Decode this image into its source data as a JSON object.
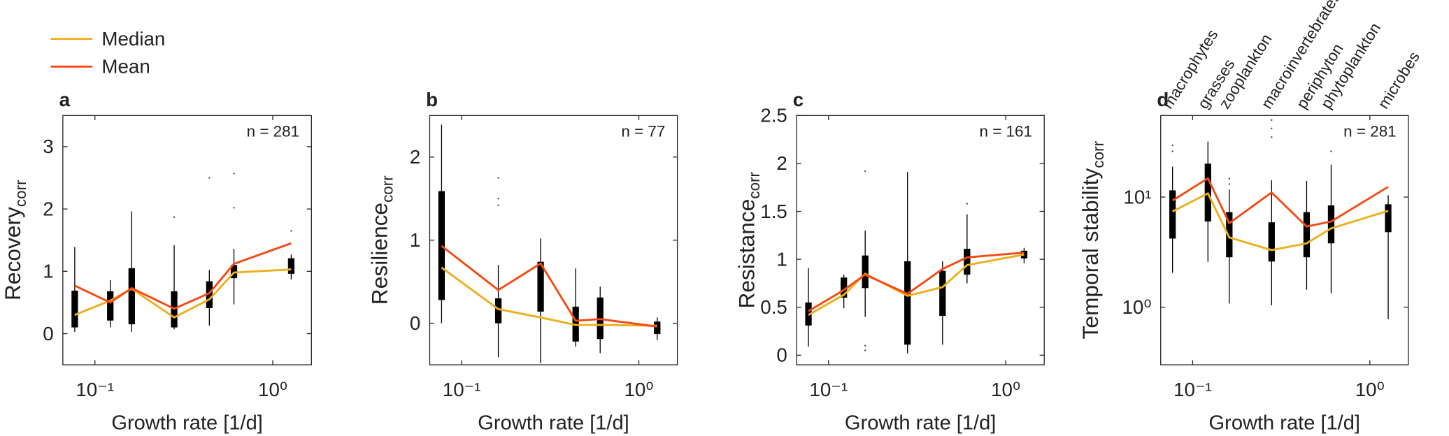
{
  "chart_data": [
    {
      "type": "box",
      "panel": "a",
      "ylabel": "Recovery",
      "ylabel_sub": "corr",
      "annotation": "n = 281",
      "xlabel": "Growth rate [1/d]",
      "xlog": true,
      "xlim": [
        0.066,
        1.65
      ],
      "xticks": [
        {
          "value": 0.1,
          "label": "10⁻¹"
        },
        {
          "value": 1,
          "label": "10⁰"
        }
      ],
      "ylim": [
        -0.5,
        3.5
      ],
      "yticks": [
        0,
        1,
        2,
        3
      ],
      "x": [
        0.077,
        0.122,
        0.161,
        0.279,
        0.44,
        0.605,
        1.27
      ],
      "boxes": [
        {
          "whislo": 0.03,
          "q1": 0.1,
          "q3": 0.69,
          "whishi": 1.39,
          "outliers": []
        },
        {
          "whislo": 0.1,
          "q1": 0.21,
          "q3": 0.68,
          "whishi": 0.86,
          "outliers": []
        },
        {
          "whislo": 0.03,
          "q1": 0.15,
          "q3": 1.05,
          "whishi": 1.96,
          "outliers": []
        },
        {
          "whislo": 0.07,
          "q1": 0.1,
          "q3": 0.68,
          "whishi": 1.42,
          "outliers": [
            1.87
          ]
        },
        {
          "whislo": 0.13,
          "q1": 0.41,
          "q3": 0.84,
          "whishi": 1.02,
          "outliers": [
            2.5
          ]
        },
        {
          "whislo": 0.47,
          "q1": 0.89,
          "q3": 1.1,
          "whishi": 1.36,
          "outliers": [
            2.57,
            2.02
          ]
        },
        {
          "whislo": 0.87,
          "q1": 0.96,
          "q3": 1.21,
          "whishi": 1.27,
          "outliers": [
            1.65
          ]
        }
      ],
      "series": [
        {
          "name": "Median",
          "color": "#ECB01F",
          "values": [
            0.3,
            0.53,
            0.72,
            0.26,
            0.55,
            0.98,
            1.03
          ]
        },
        {
          "name": "Mean",
          "color": "#F44A14",
          "values": [
            0.77,
            0.5,
            0.73,
            0.4,
            0.65,
            1.12,
            1.45
          ]
        }
      ],
      "legend": "outside upper left"
    },
    {
      "type": "box",
      "panel": "b",
      "ylabel": "Resilience",
      "ylabel_sub": "corr",
      "annotation": "n = 77",
      "xlabel": "Growth rate [1/d]",
      "xlog": true,
      "xlim": [
        0.066,
        1.65
      ],
      "xticks": [
        {
          "value": 0.1,
          "label": "10⁻¹"
        },
        {
          "value": 1,
          "label": "10⁰"
        }
      ],
      "ylim": [
        -0.5,
        2.5
      ],
      "yticks": [
        0,
        1,
        2
      ],
      "x": [
        0.077,
        0.161,
        0.279,
        0.44,
        0.605,
        1.27
      ],
      "boxes": [
        {
          "whislo": 0.0,
          "q1": 0.28,
          "q3": 1.59,
          "whishi": 2.39,
          "outliers": []
        },
        {
          "whislo": -0.41,
          "q1": 0.0,
          "q3": 0.3,
          "whishi": 0.7,
          "outliers": [
            1.75,
            1.5,
            1.42
          ]
        },
        {
          "whislo": -0.48,
          "q1": 0.14,
          "q3": 0.74,
          "whishi": 1.02,
          "outliers": []
        },
        {
          "whislo": -0.28,
          "q1": -0.22,
          "q3": 0.2,
          "whishi": 0.66,
          "outliers": []
        },
        {
          "whislo": -0.36,
          "q1": -0.19,
          "q3": 0.31,
          "whishi": 0.44,
          "outliers": []
        },
        {
          "whislo": -0.2,
          "q1": -0.13,
          "q3": 0.02,
          "whishi": 0.07,
          "outliers": []
        }
      ],
      "series": [
        {
          "name": "Median",
          "color": "#ECB01F",
          "values": [
            0.67,
            0.17,
            0.07,
            -0.02,
            -0.02,
            -0.03
          ]
        },
        {
          "name": "Mean",
          "color": "#F44A14",
          "values": [
            0.93,
            0.4,
            0.72,
            0.03,
            0.05,
            -0.04
          ]
        }
      ]
    },
    {
      "type": "box",
      "panel": "c",
      "ylabel": "Resistance",
      "ylabel_sub": "corr",
      "annotation": "n = 161",
      "xlabel": "Growth rate [1/d]",
      "xlog": true,
      "xlim": [
        0.066,
        1.65
      ],
      "xticks": [
        {
          "value": 0.1,
          "label": "10⁻¹"
        },
        {
          "value": 1,
          "label": "10⁰"
        }
      ],
      "ylim": [
        -0.1,
        2.5
      ],
      "yticks": [
        0,
        0.5,
        1,
        1.5,
        2,
        2.5
      ],
      "x": [
        0.077,
        0.122,
        0.161,
        0.279,
        0.44,
        0.605,
        1.27
      ],
      "boxes": [
        {
          "whislo": 0.09,
          "q1": 0.31,
          "q3": 0.55,
          "whishi": 0.91,
          "outliers": []
        },
        {
          "whislo": 0.49,
          "q1": 0.6,
          "q3": 0.81,
          "whishi": 0.84,
          "outliers": []
        },
        {
          "whislo": 0.4,
          "q1": 0.7,
          "q3": 1.04,
          "whishi": 1.3,
          "outliers": [
            1.92,
            0.1,
            0.05
          ]
        },
        {
          "whislo": 0.02,
          "q1": 0.11,
          "q3": 0.98,
          "whishi": 1.91,
          "outliers": []
        },
        {
          "whislo": 0.11,
          "q1": 0.41,
          "q3": 0.88,
          "whishi": 0.98,
          "outliers": []
        },
        {
          "whislo": 0.75,
          "q1": 0.84,
          "q3": 1.11,
          "whishi": 1.47,
          "outliers": [
            1.58
          ]
        },
        {
          "whislo": 0.96,
          "q1": 1.01,
          "q3": 1.09,
          "whishi": 1.12,
          "outliers": []
        }
      ],
      "series": [
        {
          "name": "Median",
          "color": "#ECB01F",
          "values": [
            0.42,
            0.63,
            0.85,
            0.62,
            0.71,
            0.94,
            1.05
          ]
        },
        {
          "name": "Mean",
          "color": "#F44A14",
          "values": [
            0.46,
            0.68,
            0.84,
            0.64,
            0.9,
            1.02,
            1.07
          ]
        }
      ]
    },
    {
      "type": "box",
      "panel": "d",
      "ylabel": "Temporal stability",
      "ylabel_sub": "corr",
      "annotation": "n = 281",
      "xlabel": "Growth rate [1/d]",
      "xlog": true,
      "xlim": [
        0.066,
        1.65
      ],
      "xticks": [
        {
          "value": 0.1,
          "label": "10⁻¹"
        },
        {
          "value": 1,
          "label": "10⁰"
        }
      ],
      "ylog": true,
      "ylim": [
        0.3,
        55
      ],
      "yticks": [
        {
          "value": 1,
          "label": "10⁰"
        },
        {
          "value": 10,
          "label": "10¹"
        }
      ],
      "x": [
        0.077,
        0.122,
        0.161,
        0.279,
        0.44,
        0.605,
        1.27
      ],
      "taxa": [
        "macrophytes",
        "grasses",
        "zooplankton",
        "macroinvertebrates",
        "periphyton",
        "phytoplankton",
        "microbes"
      ],
      "boxes": [
        {
          "whislo": 2.05,
          "q1": 4.2,
          "q3": 11.5,
          "whishi": 18.9,
          "outliers": [
            29.5,
            26
          ]
        },
        {
          "whislo": 2.58,
          "q1": 6.0,
          "q3": 20.1,
          "whishi": 31.9,
          "outliers": []
        },
        {
          "whislo": 1.08,
          "q1": 2.84,
          "q3": 7.3,
          "whishi": 11.7,
          "outliers": [
            13.1,
            14.7
          ]
        },
        {
          "whislo": 1.04,
          "q1": 2.6,
          "q3": 5.9,
          "whishi": 14.2,
          "outliers": [
            50,
            42,
            35
          ]
        },
        {
          "whislo": 1.44,
          "q1": 2.84,
          "q3": 7.3,
          "whishi": 14.0,
          "outliers": []
        },
        {
          "whislo": 1.34,
          "q1": 3.8,
          "q3": 8.4,
          "whishi": 19.7,
          "outliers": [
            26
          ]
        },
        {
          "whislo": 0.78,
          "q1": 4.8,
          "q3": 8.6,
          "whishi": 10.4,
          "outliers": []
        }
      ],
      "series": [
        {
          "name": "Median",
          "color": "#ECB01F",
          "values": [
            7.4,
            10.8,
            4.3,
            3.3,
            3.8,
            5.2,
            7.5
          ]
        },
        {
          "name": "Mean",
          "color": "#F44A14",
          "values": [
            9.3,
            14.8,
            5.8,
            11.0,
            5.4,
            6.0,
            12.4
          ]
        }
      ]
    }
  ]
}
